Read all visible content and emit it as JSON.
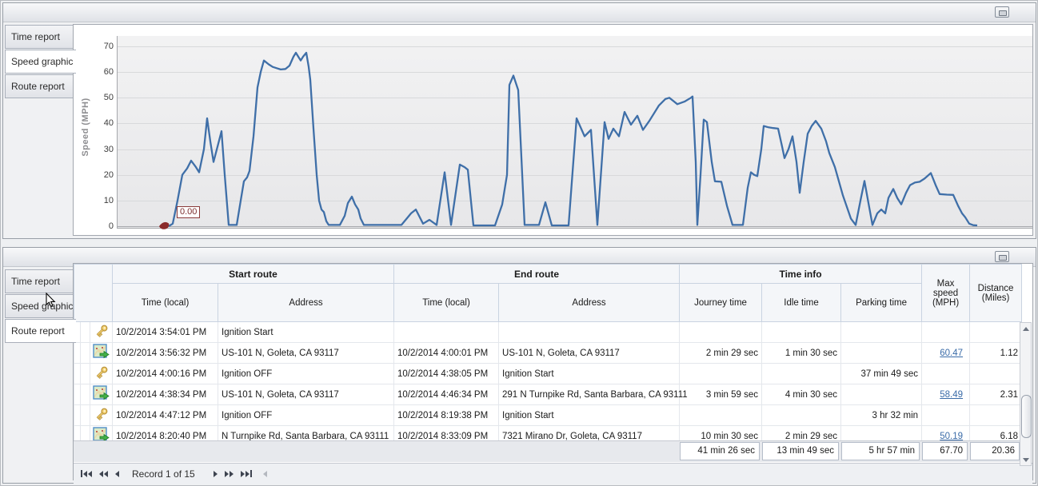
{
  "window": {
    "collapse_button": "collapse-panel"
  },
  "panels": {
    "top": {
      "tabs": [
        "Time report",
        "Speed graphic",
        "Route report"
      ],
      "active_tab": "Speed graphic"
    },
    "bottom": {
      "tabs": [
        "Time report",
        "Speed graphic",
        "Route report"
      ],
      "active_tab": "Route report"
    }
  },
  "colors": {
    "line": "#3f6fa8",
    "marker": "#8b2b2b",
    "link": "#3b6ca8",
    "grid_line": "#d8d9db",
    "axis": "#a6a8ac"
  },
  "chart_data": {
    "type": "line",
    "title": "",
    "ylabel": "Speed (MPH)",
    "ylim": [
      0,
      70
    ],
    "yticks": [
      0,
      10,
      20,
      30,
      40,
      50,
      60,
      70
    ],
    "xlabel": "",
    "x_axis_note": "time axis, no tick labels shown; x stored as px offset 0-1144 across plot",
    "grid": "horizontal",
    "legend": "none",
    "marker": {
      "x": 64,
      "value": 0,
      "label": "0.00"
    },
    "series": [
      {
        "name": "Speed",
        "points": [
          [
            64,
            0
          ],
          [
            69,
            1
          ],
          [
            75,
            10
          ],
          [
            81,
            20
          ],
          [
            87,
            22.5
          ],
          [
            92,
            25.5
          ],
          [
            98,
            23
          ],
          [
            102,
            21
          ],
          [
            108,
            30
          ],
          [
            112,
            42
          ],
          [
            116,
            33
          ],
          [
            120,
            25
          ],
          [
            125,
            31
          ],
          [
            130,
            37
          ],
          [
            134,
            20
          ],
          [
            139,
            0.5
          ],
          [
            149,
            0.5
          ],
          [
            154,
            10
          ],
          [
            158,
            17.5
          ],
          [
            162,
            19
          ],
          [
            165,
            21.5
          ],
          [
            170,
            35
          ],
          [
            175,
            54
          ],
          [
            179,
            60
          ],
          [
            183,
            64.5
          ],
          [
            189,
            63
          ],
          [
            194,
            62
          ],
          [
            199,
            61.5
          ],
          [
            204,
            61
          ],
          [
            210,
            61.2
          ],
          [
            215,
            62.5
          ],
          [
            220,
            66
          ],
          [
            223,
            67.5
          ],
          [
            226,
            66
          ],
          [
            229,
            64.5
          ],
          [
            232,
            66
          ],
          [
            236,
            67.5
          ],
          [
            239,
            62
          ],
          [
            241,
            57
          ],
          [
            245,
            38
          ],
          [
            249,
            20
          ],
          [
            252,
            10
          ],
          [
            255,
            6.5
          ],
          [
            258,
            5.5
          ],
          [
            261,
            2
          ],
          [
            264,
            0.5
          ],
          [
            278,
            0.5
          ],
          [
            284,
            4
          ],
          [
            288,
            9
          ],
          [
            293,
            11.5
          ],
          [
            297,
            8.5
          ],
          [
            301,
            6.5
          ],
          [
            304,
            3
          ],
          [
            308,
            0.5
          ],
          [
            331,
            0.5
          ],
          [
            355,
            0.5
          ],
          [
            367,
            5
          ],
          [
            373,
            6.5
          ],
          [
            382,
            1
          ],
          [
            390,
            2.5
          ],
          [
            399,
            0.5
          ],
          [
            409,
            21
          ],
          [
            417,
            0.5
          ],
          [
            428,
            24
          ],
          [
            434,
            23
          ],
          [
            438,
            22
          ],
          [
            445,
            0.3
          ],
          [
            472,
            0.3
          ],
          [
            481,
            8.5
          ],
          [
            487,
            20
          ],
          [
            490,
            55
          ],
          [
            495,
            58.6
          ],
          [
            501,
            53
          ],
          [
            509,
            0.5
          ],
          [
            527,
            0.5
          ],
          [
            535,
            9.3
          ],
          [
            543,
            0.3
          ],
          [
            564,
            0.3
          ],
          [
            574,
            42
          ],
          [
            584,
            35
          ],
          [
            592,
            37.5
          ],
          [
            600,
            0.5
          ],
          [
            609,
            40.5
          ],
          [
            614,
            34
          ],
          [
            620,
            38
          ],
          [
            627,
            35
          ],
          [
            634,
            44.5
          ],
          [
            642,
            39.5
          ],
          [
            650,
            43
          ],
          [
            657,
            37.5
          ],
          [
            665,
            41
          ],
          [
            677,
            47
          ],
          [
            685,
            49.5
          ],
          [
            690,
            50
          ],
          [
            700,
            47.5
          ],
          [
            709,
            48.5
          ],
          [
            717,
            50
          ],
          [
            719,
            50.5
          ],
          [
            723,
            25
          ],
          [
            725,
            0.5
          ],
          [
            729,
            20
          ],
          [
            733,
            41.5
          ],
          [
            737,
            40.5
          ],
          [
            743,
            25
          ],
          [
            747,
            17.5
          ],
          [
            755,
            17.3
          ],
          [
            762,
            8
          ],
          [
            769,
            0.5
          ],
          [
            782,
            0.5
          ],
          [
            788,
            15
          ],
          [
            792,
            21
          ],
          [
            796,
            20
          ],
          [
            800,
            19.5
          ],
          [
            805,
            30
          ],
          [
            808,
            39
          ],
          [
            814,
            38.5
          ],
          [
            820,
            38.2
          ],
          [
            826,
            38
          ],
          [
            831,
            31
          ],
          [
            834,
            26.5
          ],
          [
            839,
            30
          ],
          [
            844,
            35
          ],
          [
            849,
            25
          ],
          [
            853,
            13
          ],
          [
            858,
            25
          ],
          [
            863,
            36
          ],
          [
            868,
            39
          ],
          [
            873,
            41
          ],
          [
            880,
            38
          ],
          [
            886,
            33
          ],
          [
            890,
            28.5
          ],
          [
            897,
            23
          ],
          [
            907,
            12
          ],
          [
            917,
            3
          ],
          [
            923,
            0.5
          ],
          [
            929,
            10
          ],
          [
            934,
            17.6
          ],
          [
            939,
            9
          ],
          [
            944,
            0.5
          ],
          [
            950,
            5
          ],
          [
            955,
            6.5
          ],
          [
            960,
            5
          ],
          [
            964,
            11
          ],
          [
            970,
            14.5
          ],
          [
            975,
            11
          ],
          [
            980,
            8.5
          ],
          [
            986,
            13
          ],
          [
            991,
            16
          ],
          [
            997,
            17
          ],
          [
            1003,
            17.3
          ],
          [
            1009,
            18.5
          ],
          [
            1017,
            20.7
          ],
          [
            1023,
            16
          ],
          [
            1028,
            12.5
          ],
          [
            1037,
            12.3
          ],
          [
            1045,
            12.2
          ],
          [
            1051,
            8
          ],
          [
            1056,
            5
          ],
          [
            1060,
            3.5
          ],
          [
            1065,
            1
          ],
          [
            1070,
            0.4
          ],
          [
            1075,
            0.3
          ]
        ]
      }
    ]
  },
  "table": {
    "group_headers": [
      {
        "label": "Start route",
        "span": 2
      },
      {
        "label": "End route",
        "span": 2
      },
      {
        "label": "Time info",
        "span": 3
      }
    ],
    "columns": [
      "Time (local)",
      "Address",
      "Time (local)",
      "Address",
      "Journey time",
      "Idle time",
      "Parking time",
      "Max speed (MPH)",
      "Distance (Miles)"
    ],
    "row_icons": {
      "key": "ignition-key-icon",
      "route": "route-map-icon"
    },
    "rows": [
      {
        "icon": "key",
        "cells": [
          "10/2/2014 3:54:01 PM",
          "Ignition Start",
          "",
          "",
          "",
          "",
          "",
          "",
          ""
        ]
      },
      {
        "icon": "route",
        "cells": [
          "10/2/2014 3:56:32 PM",
          "US-101 N, Goleta, CA 93117",
          "10/2/2014 4:00:01 PM",
          "US-101 N, Goleta, CA 93117",
          "2 min 29 sec",
          "1 min 30 sec",
          "",
          "60.47",
          "1.12"
        ]
      },
      {
        "icon": "key",
        "cells": [
          "10/2/2014 4:00:16 PM",
          "Ignition OFF",
          "10/2/2014 4:38:05 PM",
          "Ignition Start",
          "",
          "",
          "37 min 49 sec",
          "",
          ""
        ]
      },
      {
        "icon": "route",
        "cells": [
          "10/2/2014 4:38:34 PM",
          "US-101 N, Goleta, CA 93117",
          "10/2/2014 4:46:34 PM",
          "291 N Turnpike Rd, Santa Barbara, CA 93111",
          "3 min 59 sec",
          "4 min 30 sec",
          "",
          "58.49",
          "2.31"
        ]
      },
      {
        "icon": "key",
        "cells": [
          "10/2/2014 4:47:12 PM",
          "Ignition OFF",
          "10/2/2014 8:19:38 PM",
          "Ignition Start",
          "",
          "",
          "3 hr 32 min",
          "",
          ""
        ]
      },
      {
        "icon": "route",
        "cells": [
          "10/2/2014 8:20:40 PM",
          "N Turnpike Rd, Santa Barbara, CA 93111",
          "10/2/2014 8:33:09 PM",
          "7321 Mirano Dr, Goleta, CA 93117",
          "10 min 30 sec",
          "2 min 29 sec",
          "",
          "50.19",
          "6.18"
        ]
      }
    ],
    "summary": {
      "journey": "41 min 26 sec",
      "idle": "13 min 49 sec",
      "parking": "5 hr 57 min",
      "max_speed": "67.70",
      "distance": "20.36"
    },
    "navigator": {
      "record_text": "Record 1 of 15",
      "buttons": [
        {
          "name": "first-record"
        },
        {
          "name": "prev-page"
        },
        {
          "name": "prev-record"
        },
        {
          "name": "next-record"
        },
        {
          "name": "next-page"
        },
        {
          "name": "last-record"
        },
        {
          "name": "scroll-left",
          "disabled": true
        }
      ]
    }
  }
}
